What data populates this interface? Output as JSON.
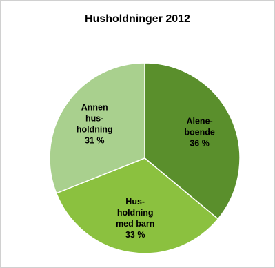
{
  "chart_data": {
    "type": "pie",
    "title": "Husholdninger 2012",
    "slices": [
      {
        "name": "Aleneboende",
        "value": 36,
        "label_lines": [
          "Alene-",
          "boende",
          "36 %"
        ],
        "color": "#5a8f2c"
      },
      {
        "name": "Husholdning med barn",
        "value": 33,
        "label_lines": [
          "Hus-",
          "holdning",
          "med barn",
          "33 %"
        ],
        "color": "#8bc13f"
      },
      {
        "name": "Annen husholdning",
        "value": 31,
        "label_lines": [
          "Annen",
          "hus-",
          "holdning",
          "31 %"
        ],
        "color": "#a9d08e"
      }
    ],
    "start_angle_deg": 0,
    "direction": "clockwise",
    "legend": "none"
  }
}
